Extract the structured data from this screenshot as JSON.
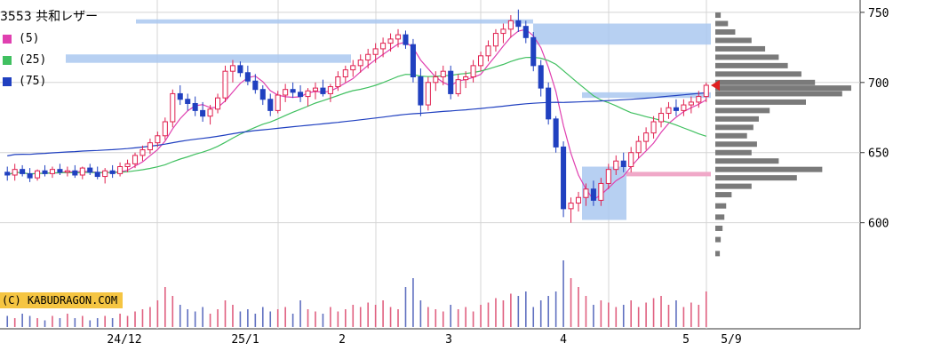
{
  "title": "3553 共和レザー",
  "legend": [
    {
      "label": "(5)",
      "color": "#e040b0"
    },
    {
      "label": "(25)",
      "color": "#40c060"
    },
    {
      "label": "(75)",
      "color": "#2040c0"
    }
  ],
  "copyright": "(C) KABUDRAGON.COM",
  "chart_data": {
    "type": "candlestick",
    "x_labels": [
      "24/12",
      "25/1",
      "2",
      "3",
      "4",
      "5",
      "5/9"
    ],
    "y_ticks": [
      600,
      650,
      700,
      750
    ],
    "ylim": [
      570,
      755
    ],
    "grid": true,
    "last_price_marker": 698,
    "candles": [
      [
        636,
        640,
        630,
        634
      ],
      [
        634,
        642,
        630,
        638
      ],
      [
        638,
        641,
        633,
        635
      ],
      [
        635,
        639,
        629,
        632
      ],
      [
        632,
        638,
        630,
        637
      ],
      [
        637,
        641,
        633,
        635
      ],
      [
        635,
        640,
        632,
        638
      ],
      [
        638,
        642,
        634,
        636
      ],
      [
        636,
        640,
        633,
        637
      ],
      [
        637,
        641,
        632,
        634
      ],
      [
        634,
        640,
        631,
        639
      ],
      [
        639,
        642,
        634,
        636
      ],
      [
        636,
        640,
        631,
        633
      ],
      [
        633,
        639,
        628,
        637
      ],
      [
        637,
        641,
        632,
        635
      ],
      [
        635,
        643,
        633,
        640
      ],
      [
        640,
        645,
        636,
        642
      ],
      [
        642,
        650,
        639,
        648
      ],
      [
        648,
        655,
        644,
        652
      ],
      [
        652,
        660,
        649,
        657
      ],
      [
        657,
        665,
        654,
        662
      ],
      [
        662,
        675,
        659,
        672
      ],
      [
        672,
        695,
        668,
        692
      ],
      [
        692,
        698,
        684,
        688
      ],
      [
        688,
        692,
        680,
        685
      ],
      [
        685,
        690,
        676,
        680
      ],
      [
        680,
        686,
        672,
        676
      ],
      [
        676,
        684,
        670,
        681
      ],
      [
        681,
        692,
        678,
        689
      ],
      [
        689,
        712,
        686,
        708
      ],
      [
        708,
        716,
        700,
        712
      ],
      [
        712,
        715,
        704,
        707
      ],
      [
        707,
        712,
        698,
        701
      ],
      [
        701,
        706,
        692,
        695
      ],
      [
        695,
        698,
        684,
        688
      ],
      [
        688,
        692,
        676,
        680
      ],
      [
        680,
        694,
        678,
        691
      ],
      [
        691,
        699,
        686,
        695
      ],
      [
        695,
        700,
        689,
        693
      ],
      [
        693,
        698,
        686,
        690
      ],
      [
        690,
        696,
        683,
        694
      ],
      [
        694,
        700,
        688,
        696
      ],
      [
        696,
        702,
        690,
        692
      ],
      [
        692,
        699,
        686,
        697
      ],
      [
        697,
        708,
        694,
        704
      ],
      [
        704,
        712,
        700,
        709
      ],
      [
        709,
        716,
        704,
        712
      ],
      [
        712,
        720,
        707,
        716
      ],
      [
        716,
        724,
        710,
        720
      ],
      [
        720,
        728,
        714,
        724
      ],
      [
        724,
        732,
        718,
        728
      ],
      [
        728,
        735,
        722,
        731
      ],
      [
        731,
        738,
        725,
        734
      ],
      [
        734,
        737,
        724,
        727
      ],
      [
        727,
        731,
        700,
        704
      ],
      [
        704,
        710,
        676,
        684
      ],
      [
        684,
        704,
        680,
        700
      ],
      [
        700,
        708,
        694,
        704
      ],
      [
        704,
        712,
        698,
        708
      ],
      [
        708,
        712,
        688,
        692
      ],
      [
        692,
        706,
        690,
        702
      ],
      [
        702,
        708,
        696,
        704
      ],
      [
        704,
        716,
        700,
        712
      ],
      [
        712,
        722,
        708,
        719
      ],
      [
        719,
        730,
        715,
        726
      ],
      [
        726,
        738,
        722,
        735
      ],
      [
        735,
        742,
        728,
        738
      ],
      [
        738,
        748,
        732,
        744
      ],
      [
        744,
        752,
        736,
        740
      ],
      [
        740,
        744,
        728,
        732
      ],
      [
        732,
        736,
        708,
        712
      ],
      [
        712,
        716,
        690,
        696
      ],
      [
        696,
        700,
        670,
        674
      ],
      [
        674,
        676,
        650,
        654
      ],
      [
        654,
        658,
        604,
        610
      ],
      [
        610,
        618,
        600,
        614
      ],
      [
        614,
        622,
        608,
        618
      ],
      [
        618,
        628,
        612,
        624
      ],
      [
        624,
        630,
        612,
        616
      ],
      [
        616,
        632,
        612,
        628
      ],
      [
        628,
        642,
        624,
        638
      ],
      [
        638,
        648,
        634,
        644
      ],
      [
        644,
        650,
        636,
        640
      ],
      [
        640,
        654,
        636,
        650
      ],
      [
        650,
        662,
        646,
        658
      ],
      [
        658,
        668,
        652,
        664
      ],
      [
        664,
        676,
        660,
        672
      ],
      [
        672,
        682,
        668,
        678
      ],
      [
        678,
        686,
        674,
        682
      ],
      [
        682,
        688,
        676,
        680
      ],
      [
        680,
        688,
        676,
        684
      ],
      [
        684,
        690,
        678,
        686
      ],
      [
        686,
        694,
        682,
        690
      ],
      [
        690,
        700,
        686,
        698
      ]
    ],
    "ma": [
      {
        "name": "(5)",
        "color": "#e040b0",
        "period": 5
      },
      {
        "name": "(25)",
        "color": "#40c060",
        "period": 25
      },
      {
        "name": "(75)",
        "color": "#2040c0",
        "period": 75
      }
    ],
    "volume": [
      5,
      4,
      6,
      5,
      4,
      3,
      5,
      4,
      6,
      4,
      5,
      3,
      4,
      5,
      4,
      6,
      5,
      7,
      8,
      9,
      12,
      18,
      14,
      10,
      8,
      7,
      9,
      6,
      8,
      12,
      10,
      7,
      8,
      6,
      9,
      7,
      8,
      9,
      6,
      12,
      8,
      7,
      6,
      9,
      7,
      8,
      10,
      9,
      11,
      10,
      12,
      9,
      8,
      18,
      22,
      12,
      9,
      8,
      7,
      10,
      8,
      9,
      7,
      10,
      11,
      13,
      12,
      15,
      14,
      16,
      9,
      12,
      14,
      16,
      30,
      22,
      18,
      14,
      10,
      12,
      11,
      9,
      10,
      12,
      9,
      11,
      13,
      14,
      10,
      12,
      9,
      11,
      10,
      16
    ],
    "volume_profile": [
      {
        "price": 748,
        "w": 6
      },
      {
        "price": 742,
        "w": 14
      },
      {
        "price": 736,
        "w": 22
      },
      {
        "price": 730,
        "w": 40
      },
      {
        "price": 724,
        "w": 55
      },
      {
        "price": 718,
        "w": 70
      },
      {
        "price": 712,
        "w": 80
      },
      {
        "price": 706,
        "w": 95
      },
      {
        "price": 700,
        "w": 110
      },
      {
        "price": 696,
        "w": 150
      },
      {
        "price": 692,
        "w": 140
      },
      {
        "price": 686,
        "w": 100
      },
      {
        "price": 680,
        "w": 60
      },
      {
        "price": 674,
        "w": 48
      },
      {
        "price": 668,
        "w": 42
      },
      {
        "price": 662,
        "w": 35
      },
      {
        "price": 656,
        "w": 46
      },
      {
        "price": 650,
        "w": 40
      },
      {
        "price": 644,
        "w": 70
      },
      {
        "price": 638,
        "w": 118
      },
      {
        "price": 632,
        "w": 90
      },
      {
        "price": 626,
        "w": 40
      },
      {
        "price": 620,
        "w": 18
      },
      {
        "price": 612,
        "w": 12
      },
      {
        "price": 604,
        "w": 10
      },
      {
        "price": 596,
        "w": 8
      },
      {
        "price": 588,
        "w": 6
      },
      {
        "price": 578,
        "w": 5
      }
    ],
    "resistance_bands": [
      {
        "from": 745,
        "to": 742
      },
      {
        "from": 742,
        "to": 727
      },
      {
        "from": 720,
        "to": 714
      },
      {
        "from": 693,
        "to": 689
      }
    ],
    "support_band": {
      "price": 635
    },
    "gap_box": {
      "from": 640,
      "to": 602
    }
  }
}
